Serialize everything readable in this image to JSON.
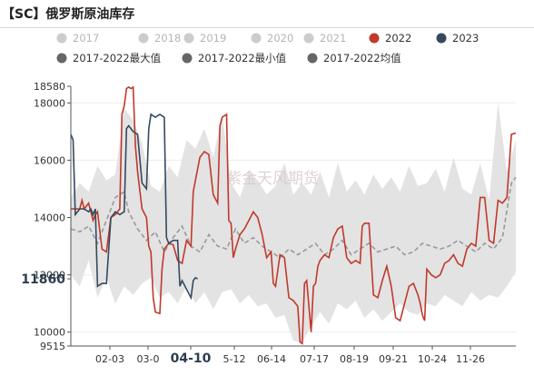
{
  "title": "【SC】俄罗斯原油库存",
  "chart_data": {
    "type": "line",
    "title": "【SC】俄罗斯原油库存",
    "watermark": "紫金天风期货",
    "ylim": [
      9515,
      18580
    ],
    "yticks": [
      9515,
      10000,
      12000,
      14000,
      16000,
      18000,
      18580
    ],
    "yticks_bold": [
      11860
    ],
    "xticks": [
      "02-03",
      "03-0",
      "04-10",
      "5-12",
      "06-14",
      "07-17",
      "08-19",
      "09-21",
      "10-24",
      "11-26"
    ],
    "xtick_bold": "04-10",
    "legend_rows": [
      [
        {
          "label": "2017",
          "color": "#cccccc",
          "dim": true
        },
        {
          "label": "2018",
          "color": "#cccccc",
          "dim": true
        },
        {
          "label": "2019",
          "color": "#cccccc",
          "dim": true
        },
        {
          "label": "2020",
          "color": "#cccccc",
          "dim": true
        },
        {
          "label": "2021",
          "color": "#cccccc",
          "dim": true
        },
        {
          "label": "2022",
          "color": "#c0392b",
          "dim": false
        },
        {
          "label": "2023",
          "color": "#34495e",
          "dim": false
        }
      ],
      [
        {
          "label": "2017-2022最大值",
          "color": "#666666",
          "dim": false
        },
        {
          "label": "2017-2022最小值",
          "color": "#666666",
          "dim": false
        },
        {
          "label": "2017-2022均值",
          "color": "#666666",
          "dim": false
        }
      ]
    ],
    "colors": {
      "s2022": "#c0392b",
      "s2023": "#34495e",
      "range": "#e3e3e3",
      "mean": "#999999"
    },
    "x_domain": [
      0,
      100
    ],
    "series_2022": [
      [
        0,
        14300
      ],
      [
        2,
        14300
      ],
      [
        2.5,
        14600
      ],
      [
        3,
        14300
      ],
      [
        4,
        14500
      ],
      [
        5,
        13900
      ],
      [
        5.5,
        14100
      ],
      [
        6,
        14200
      ],
      [
        7,
        12900
      ],
      [
        8,
        12800
      ],
      [
        9,
        14000
      ],
      [
        10,
        14100
      ],
      [
        11,
        14300
      ],
      [
        11.5,
        17600
      ],
      [
        12,
        17900
      ],
      [
        12.5,
        18500
      ],
      [
        13,
        18550
      ],
      [
        13.5,
        18500
      ],
      [
        14,
        18550
      ],
      [
        14.5,
        16500
      ],
      [
        15,
        15600
      ],
      [
        16,
        14300
      ],
      [
        17,
        14000
      ],
      [
        17.5,
        13000
      ],
      [
        18,
        12800
      ],
      [
        18.5,
        11200
      ],
      [
        19,
        10700
      ],
      [
        20,
        10650
      ],
      [
        20.5,
        12200
      ],
      [
        21,
        12900
      ],
      [
        22,
        13100
      ],
      [
        23,
        13050
      ],
      [
        24,
        12500
      ],
      [
        25,
        12400
      ],
      [
        26,
        13200
      ],
      [
        27,
        13000
      ],
      [
        27.5,
        14900
      ],
      [
        28,
        15300
      ],
      [
        29,
        16100
      ],
      [
        30,
        16300
      ],
      [
        31,
        16200
      ],
      [
        32,
        14800
      ],
      [
        33,
        14500
      ],
      [
        33.5,
        17200
      ],
      [
        34,
        17500
      ],
      [
        35,
        17600
      ],
      [
        35.5,
        13900
      ],
      [
        36,
        13800
      ],
      [
        36.5,
        12600
      ],
      [
        37,
        12900
      ],
      [
        38,
        13400
      ],
      [
        39,
        13600
      ],
      [
        40,
        13900
      ],
      [
        41,
        14200
      ],
      [
        42,
        14000
      ],
      [
        43,
        13400
      ],
      [
        44,
        12600
      ],
      [
        45,
        12800
      ],
      [
        45.5,
        11700
      ],
      [
        46,
        11600
      ],
      [
        47,
        12700
      ],
      [
        48,
        12600
      ],
      [
        49,
        11200
      ],
      [
        50,
        11100
      ],
      [
        51,
        10900
      ],
      [
        51.5,
        9650
      ],
      [
        52,
        9600
      ],
      [
        52.5,
        11700
      ],
      [
        53,
        11800
      ],
      [
        54,
        10000
      ],
      [
        54.5,
        11600
      ],
      [
        55,
        11700
      ],
      [
        55.5,
        12300
      ],
      [
        56,
        12500
      ],
      [
        57,
        12700
      ],
      [
        58,
        12600
      ],
      [
        59,
        13300
      ],
      [
        60,
        13600
      ],
      [
        61,
        13700
      ],
      [
        62,
        12600
      ],
      [
        63,
        12400
      ],
      [
        64,
        12500
      ],
      [
        65,
        12400
      ],
      [
        65.5,
        13700
      ],
      [
        66,
        13800
      ],
      [
        67,
        13800
      ],
      [
        68,
        11300
      ],
      [
        69,
        11200
      ],
      [
        70,
        11800
      ],
      [
        71,
        12300
      ],
      [
        72,
        11600
      ],
      [
        73,
        10500
      ],
      [
        74,
        10400
      ],
      [
        75,
        11000
      ],
      [
        76,
        11600
      ],
      [
        77,
        11700
      ],
      [
        78,
        11300
      ],
      [
        78.5,
        11000
      ],
      [
        79,
        10600
      ],
      [
        79.5,
        10400
      ],
      [
        80,
        12200
      ],
      [
        81,
        12000
      ],
      [
        82,
        11900
      ],
      [
        83,
        12000
      ],
      [
        84,
        12400
      ],
      [
        85,
        12500
      ],
      [
        86,
        12700
      ],
      [
        87,
        12400
      ],
      [
        88,
        12300
      ],
      [
        89,
        12900
      ],
      [
        90,
        13100
      ],
      [
        91,
        13000
      ],
      [
        92,
        14700
      ],
      [
        93,
        14700
      ],
      [
        94,
        13200
      ],
      [
        95,
        13100
      ],
      [
        96,
        14600
      ],
      [
        97,
        14500
      ],
      [
        98,
        14700
      ],
      [
        99,
        16900
      ],
      [
        100,
        16950
      ]
    ],
    "series_2023": [
      [
        0,
        16900
      ],
      [
        0.5,
        16700
      ],
      [
        1,
        14100
      ],
      [
        2,
        14300
      ],
      [
        3,
        14300
      ],
      [
        4,
        14200
      ],
      [
        4.5,
        14300
      ],
      [
        5,
        14100
      ],
      [
        5.5,
        14300
      ],
      [
        6,
        11600
      ],
      [
        7,
        11700
      ],
      [
        8,
        11700
      ],
      [
        9,
        14000
      ],
      [
        10,
        14200
      ],
      [
        11,
        14100
      ],
      [
        12,
        14200
      ],
      [
        12.5,
        17100
      ],
      [
        13,
        17200
      ],
      [
        14,
        17000
      ],
      [
        15,
        16900
      ],
      [
        16,
        15200
      ],
      [
        17,
        15000
      ],
      [
        17.5,
        17100
      ],
      [
        18,
        17600
      ],
      [
        19,
        17500
      ],
      [
        20,
        17600
      ],
      [
        21,
        17500
      ],
      [
        21.5,
        13300
      ],
      [
        22,
        13100
      ],
      [
        23,
        13200
      ],
      [
        24,
        13200
      ],
      [
        24.5,
        11600
      ],
      [
        25,
        11800
      ],
      [
        26,
        11500
      ],
      [
        27,
        11200
      ],
      [
        27.5,
        11800
      ],
      [
        28,
        11900
      ],
      [
        28.5,
        11860
      ]
    ],
    "range_max": [
      [
        0,
        14700
      ],
      [
        2,
        15200
      ],
      [
        4,
        14900
      ],
      [
        6,
        15800
      ],
      [
        8,
        15300
      ],
      [
        10,
        15500
      ],
      [
        12,
        17800
      ],
      [
        14,
        17400
      ],
      [
        16,
        16600
      ],
      [
        18,
        15100
      ],
      [
        20,
        14900
      ],
      [
        22,
        15800
      ],
      [
        24,
        15400
      ],
      [
        26,
        16700
      ],
      [
        28,
        16400
      ],
      [
        30,
        17100
      ],
      [
        32,
        16100
      ],
      [
        34,
        17600
      ],
      [
        36,
        15200
      ],
      [
        38,
        14700
      ],
      [
        40,
        15600
      ],
      [
        42,
        15300
      ],
      [
        44,
        14800
      ],
      [
        46,
        15100
      ],
      [
        48,
        15900
      ],
      [
        50,
        14800
      ],
      [
        52,
        15200
      ],
      [
        54,
        14800
      ],
      [
        56,
        15600
      ],
      [
        58,
        14700
      ],
      [
        60,
        15900
      ],
      [
        62,
        14900
      ],
      [
        64,
        15300
      ],
      [
        66,
        14800
      ],
      [
        68,
        15500
      ],
      [
        70,
        15000
      ],
      [
        72,
        15400
      ],
      [
        74,
        14900
      ],
      [
        76,
        15800
      ],
      [
        78,
        15100
      ],
      [
        80,
        15200
      ],
      [
        82,
        15700
      ],
      [
        84,
        14900
      ],
      [
        86,
        16100
      ],
      [
        88,
        15000
      ],
      [
        90,
        14800
      ],
      [
        92,
        15900
      ],
      [
        94,
        14600
      ],
      [
        96,
        18000
      ],
      [
        98,
        15600
      ],
      [
        100,
        16700
      ]
    ],
    "range_min": [
      [
        0,
        12000
      ],
      [
        2,
        11600
      ],
      [
        4,
        12500
      ],
      [
        6,
        11200
      ],
      [
        8,
        11900
      ],
      [
        10,
        11000
      ],
      [
        12,
        11600
      ],
      [
        14,
        11300
      ],
      [
        16,
        11700
      ],
      [
        18,
        11900
      ],
      [
        20,
        11200
      ],
      [
        22,
        11400
      ],
      [
        24,
        11000
      ],
      [
        26,
        11600
      ],
      [
        28,
        11000
      ],
      [
        30,
        11400
      ],
      [
        32,
        10800
      ],
      [
        34,
        11400
      ],
      [
        36,
        11500
      ],
      [
        38,
        11000
      ],
      [
        40,
        11300
      ],
      [
        42,
        10900
      ],
      [
        44,
        11000
      ],
      [
        46,
        10500
      ],
      [
        48,
        10600
      ],
      [
        50,
        9700
      ],
      [
        52,
        9650
      ],
      [
        54,
        10200
      ],
      [
        56,
        10700
      ],
      [
        58,
        10300
      ],
      [
        60,
        11000
      ],
      [
        62,
        10800
      ],
      [
        64,
        11100
      ],
      [
        66,
        10500
      ],
      [
        68,
        10800
      ],
      [
        70,
        10400
      ],
      [
        72,
        10700
      ],
      [
        74,
        11000
      ],
      [
        76,
        10700
      ],
      [
        78,
        10600
      ],
      [
        80,
        11000
      ],
      [
        82,
        10900
      ],
      [
        84,
        11300
      ],
      [
        86,
        11100
      ],
      [
        88,
        10900
      ],
      [
        90,
        11400
      ],
      [
        92,
        11100
      ],
      [
        94,
        11300
      ],
      [
        96,
        11200
      ],
      [
        98,
        11600
      ],
      [
        100,
        12100
      ]
    ],
    "range_mean": [
      [
        0,
        13600
      ],
      [
        2,
        13500
      ],
      [
        4,
        13700
      ],
      [
        6,
        13100
      ],
      [
        8,
        13900
      ],
      [
        10,
        14700
      ],
      [
        12,
        14900
      ],
      [
        13,
        14200
      ],
      [
        15,
        13600
      ],
      [
        17,
        13200
      ],
      [
        19,
        13500
      ],
      [
        21,
        12800
      ],
      [
        23,
        13300
      ],
      [
        25,
        13700
      ],
      [
        27,
        13000
      ],
      [
        29,
        12800
      ],
      [
        31,
        13400
      ],
      [
        33,
        13000
      ],
      [
        35,
        12900
      ],
      [
        37,
        13600
      ],
      [
        39,
        13100
      ],
      [
        41,
        13300
      ],
      [
        43,
        13000
      ],
      [
        45,
        12800
      ],
      [
        47,
        12600
      ],
      [
        49,
        12900
      ],
      [
        51,
        12700
      ],
      [
        53,
        12900
      ],
      [
        55,
        13100
      ],
      [
        57,
        12700
      ],
      [
        59,
        12900
      ],
      [
        61,
        13200
      ],
      [
        63,
        12700
      ],
      [
        65,
        12900
      ],
      [
        67,
        13100
      ],
      [
        69,
        12800
      ],
      [
        71,
        12900
      ],
      [
        73,
        13000
      ],
      [
        75,
        12700
      ],
      [
        77,
        12800
      ],
      [
        79,
        13100
      ],
      [
        81,
        13000
      ],
      [
        83,
        12900
      ],
      [
        85,
        13000
      ],
      [
        87,
        13200
      ],
      [
        89,
        13000
      ],
      [
        91,
        12800
      ],
      [
        93,
        13100
      ],
      [
        95,
        12900
      ],
      [
        97,
        13300
      ],
      [
        99,
        15200
      ],
      [
        100,
        15400
      ]
    ]
  }
}
